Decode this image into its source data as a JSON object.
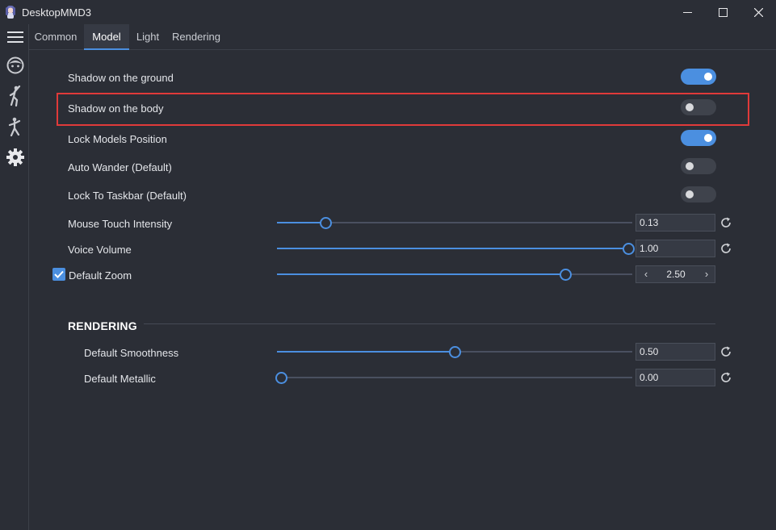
{
  "window": {
    "title": "DesktopMMD3",
    "app_icon": "anime-character-icon",
    "controls": [
      "minimize-icon",
      "maximize-icon",
      "close-icon"
    ]
  },
  "sidebar": {
    "items": [
      {
        "icon": "hamburger-menu-icon"
      },
      {
        "icon": "face-icon"
      },
      {
        "icon": "dance-pose-icon"
      },
      {
        "icon": "walking-figure-icon"
      },
      {
        "icon": "gear-icon"
      }
    ]
  },
  "tabs": [
    {
      "label": "Common",
      "active": false
    },
    {
      "label": "Model",
      "active": true
    },
    {
      "label": "Light",
      "active": false
    },
    {
      "label": "Rendering",
      "active": false
    }
  ],
  "toggles": [
    {
      "label": "Shadow on the ground",
      "on": true
    },
    {
      "label": "Shadow on the body",
      "on": false,
      "highlighted": true
    },
    {
      "label": "Lock Models Position",
      "on": true
    },
    {
      "label": "Auto Wander (Default)",
      "on": false
    },
    {
      "label": "Lock To Taskbar (Default)",
      "on": false
    }
  ],
  "sliders": [
    {
      "label": "Mouse Touch Intensity",
      "value": "0.13",
      "fraction": 0.13,
      "reset": true
    },
    {
      "label": "Voice Volume",
      "value": "1.00",
      "fraction": 1.0,
      "reset": true
    }
  ],
  "zoom": {
    "label": "Default Zoom",
    "checked": true,
    "value": "2.50",
    "fraction": 0.82,
    "prev": "‹",
    "next": "›"
  },
  "rendering": {
    "section_title": "RENDERING",
    "sliders": [
      {
        "label": "Default Smoothness",
        "value": "0.50",
        "fraction": 0.5,
        "reset": true
      },
      {
        "label": "Default Metallic",
        "value": "0.00",
        "fraction": 0.0,
        "reset": true
      }
    ]
  },
  "colors": {
    "background": "#2b2e36",
    "accent": "#4b8fe0",
    "highlight": "#e03a3a"
  }
}
